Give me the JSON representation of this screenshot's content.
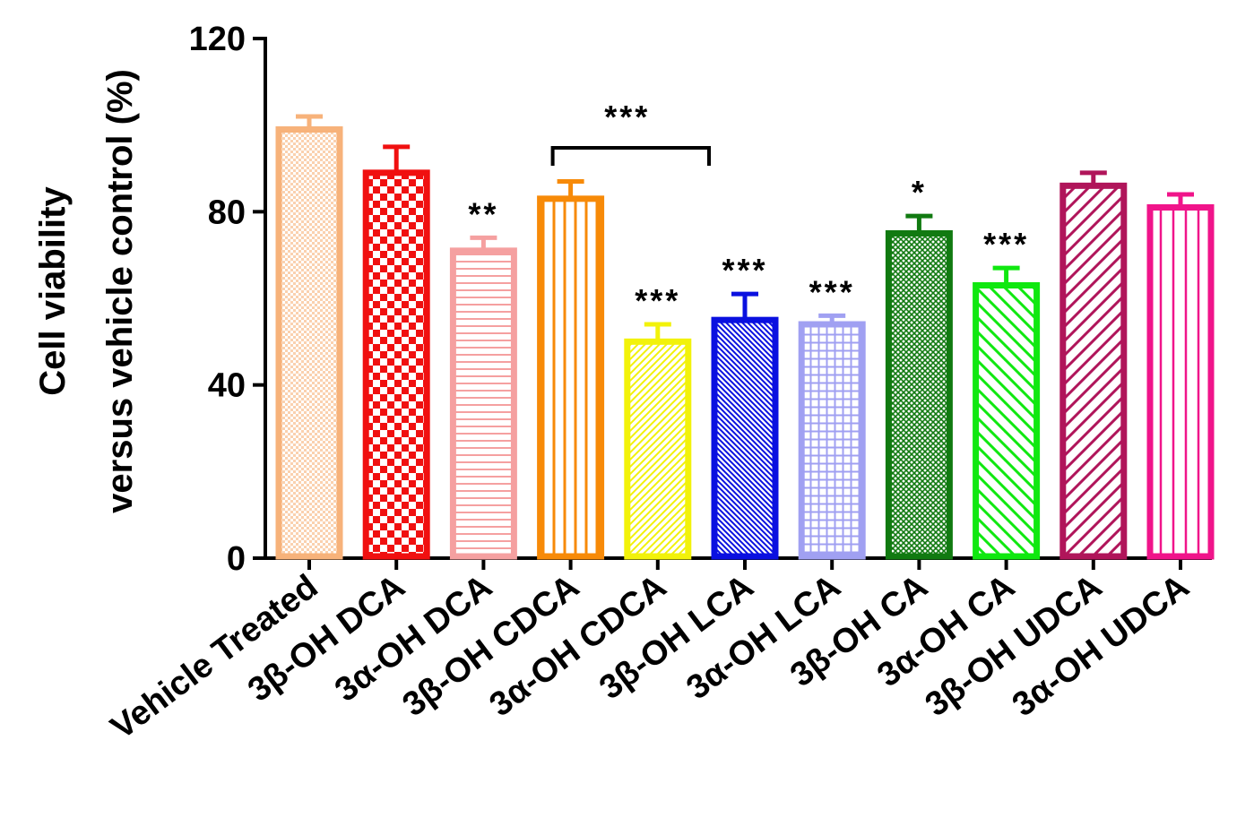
{
  "chart_data": {
    "type": "bar",
    "title": "",
    "xlabel": "",
    "ylabel_lines": [
      "Cell viability",
      "versus vehicle control (%)"
    ],
    "ylim": [
      0,
      120
    ],
    "yticks": [
      0,
      40,
      80,
      120
    ],
    "tick_labels": [
      "0",
      "40",
      "80",
      "120"
    ],
    "categories": [
      "Vehicle Treated",
      "3β-OH DCA",
      "3α-OH DCA",
      "3β-OH CDCA",
      "3α-OH CDCA",
      "3β-OH LCA",
      "3α-OH LCA",
      "3β-OH CA",
      "3α-OH CA",
      "3β-OH UDCA",
      "3α-OH UDCA"
    ],
    "values": [
      99,
      89,
      71,
      83,
      50,
      55,
      54,
      75,
      63,
      86,
      81
    ],
    "errors": [
      3,
      6,
      3,
      4,
      4,
      6,
      2,
      4,
      4,
      3,
      3
    ],
    "colors": [
      "#F7B27A",
      "#F01010",
      "#F5A0A0",
      "#F78A08",
      "#F2F20A",
      "#0A10E0",
      "#A0A0F2",
      "#117A11",
      "#10E810",
      "#B0155A",
      "#F0148A"
    ],
    "patterns": [
      "fine-check",
      "checker",
      "hlines",
      "vlines",
      "diag",
      "diag-dense",
      "grid",
      "cross-dense",
      "diag-wide",
      "diag-wide2",
      "vlines-sparse"
    ],
    "significance": [
      "",
      "",
      "**",
      "",
      "***",
      "***",
      "***",
      "*",
      "***",
      "",
      ""
    ],
    "bracket": {
      "from_index": 3,
      "to_index": 5,
      "label": "***"
    },
    "grid": false,
    "legend": "none"
  }
}
